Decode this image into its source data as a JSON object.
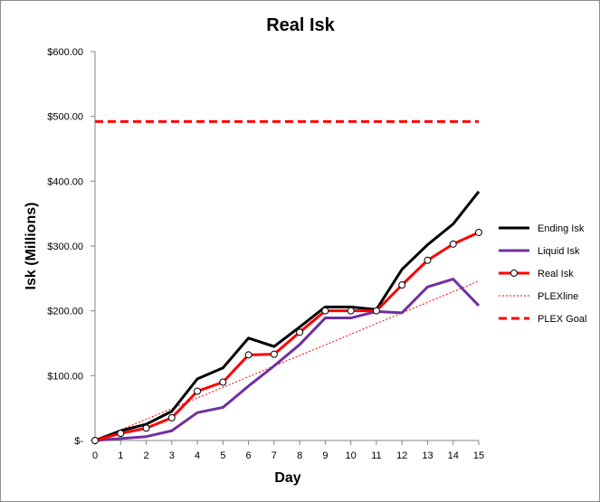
{
  "chart_data": {
    "type": "line",
    "title": "Real Isk",
    "xlabel": "Day",
    "ylabel": "Isk (Millions)",
    "x": [
      0,
      1,
      2,
      3,
      4,
      5,
      6,
      7,
      8,
      9,
      10,
      11,
      12,
      13,
      14,
      15
    ],
    "xlim": [
      0,
      15
    ],
    "ylim": [
      0,
      600
    ],
    "y_ticks": [
      0,
      100,
      200,
      300,
      400,
      500,
      600
    ],
    "y_tick_labels": [
      "$-",
      "$100.00",
      "$200.00",
      "$300.00",
      "$400.00",
      "$500.00",
      "$600.00"
    ],
    "x_tick_labels": [
      "0",
      "1",
      "2",
      "3",
      "4",
      "5",
      "6",
      "7",
      "8",
      "9",
      "10",
      "11",
      "12",
      "13",
      "14",
      "15"
    ],
    "grid": "none",
    "legend_position": "right",
    "series": [
      {
        "name": "Ending Isk",
        "color": "#000000",
        "style": "solid",
        "marker": "none",
        "values": [
          0,
          15,
          25,
          45,
          95,
          112,
          158,
          145,
          175,
          206,
          206,
          202,
          264,
          302,
          334,
          384
        ]
      },
      {
        "name": "Liquid Isk",
        "color": "#7030a0",
        "style": "solid",
        "marker": "none",
        "values": [
          0,
          3,
          6,
          15,
          43,
          51,
          84,
          115,
          148,
          189,
          189,
          199,
          197,
          237,
          249,
          208
        ]
      },
      {
        "name": "Real Isk",
        "color": "#ff0000",
        "style": "solid",
        "marker": "circle",
        "values": [
          0,
          11,
          19,
          35,
          76,
          90,
          132,
          133,
          167,
          200,
          200,
          200,
          240,
          278,
          303,
          321
        ]
      },
      {
        "name": "PLEXline",
        "color": "#ff0000",
        "style": "dotted",
        "marker": "none",
        "values": [
          0,
          16.4,
          32.8,
          49.2,
          65.6,
          82,
          98.4,
          114.8,
          131.2,
          147.6,
          164,
          180.4,
          196.8,
          213.2,
          229.6,
          246
        ]
      },
      {
        "name": "PLEX Goal",
        "color": "#ff0000",
        "style": "dashed",
        "marker": "none",
        "values": [
          492,
          492,
          492,
          492,
          492,
          492,
          492,
          492,
          492,
          492,
          492,
          492,
          492,
          492,
          492,
          492
        ]
      }
    ]
  }
}
